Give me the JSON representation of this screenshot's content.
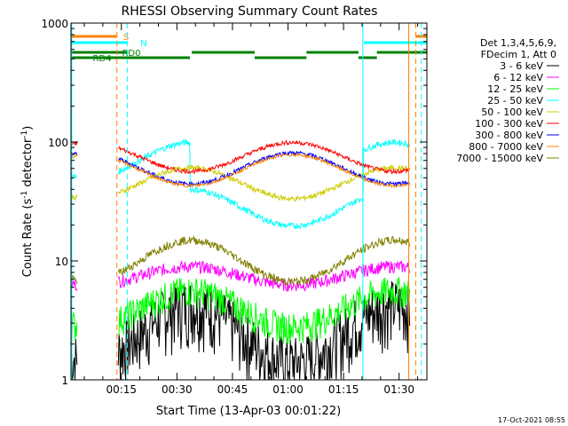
{
  "chart_data": {
    "type": "line",
    "title": "RHESSI Observing Summary Count Rates",
    "xlabel": "Start Time (13-Apr-03 00:01:22)",
    "ylabel_main": "Count Rate (s",
    "ylabel_sup1": "-1",
    "ylabel_mid": " detector",
    "ylabel_sup2": "-1",
    "ylabel_end": ")",
    "yscale": "log",
    "ylim": [
      1,
      1000
    ],
    "xlim_minutes": [
      1.4,
      97.5
    ],
    "x_ticks": [
      {
        "label": "00:15",
        "minutes": 15
      },
      {
        "label": "00:30",
        "minutes": 30
      },
      {
        "label": "00:45",
        "minutes": 45
      },
      {
        "label": "01:00",
        "minutes": 60
      },
      {
        "label": "01:15",
        "minutes": 75
      },
      {
        "label": "01:30",
        "minutes": 90
      }
    ],
    "y_ticks": [
      {
        "label": "1",
        "value": 1
      },
      {
        "label": "10",
        "value": 10
      },
      {
        "label": "100",
        "value": 100
      },
      {
        "label": "1000",
        "value": 1000
      }
    ],
    "legend_header": [
      "Det 1,3,4,5,6,9,",
      "FDecim 1, Att 0"
    ],
    "series": [
      {
        "name": "3 - 6 keV",
        "color": "#000000",
        "level": 2.5,
        "amp": 0.55,
        "noise": 0.6,
        "sats": "low"
      },
      {
        "name": "6 - 12 keV",
        "color": "#ff00ff",
        "level": 7.5,
        "amp": 0.18,
        "noise": 0.12,
        "sats": "mid"
      },
      {
        "name": "12 - 25 keV",
        "color": "#00ff00",
        "level": 4.0,
        "amp": 0.35,
        "noise": 0.3,
        "sats": "low"
      },
      {
        "name": "25 - 50 keV",
        "color": "#00ffff",
        "level": 28,
        "amp": 0.35,
        "noise": 0.06,
        "sats": "cyan"
      },
      {
        "name": "50 - 100 keV",
        "color": "#cccc00",
        "level": 45,
        "amp": 0.3,
        "noise": 0.05,
        "sats": "yellow"
      },
      {
        "name": "100 - 300 keV",
        "color": "#ff0000",
        "level": 75,
        "amp": 0.28,
        "noise": 0.04,
        "sats": "high"
      },
      {
        "name": "300 - 800 keV",
        "color": "#0000ff",
        "level": 60,
        "amp": 0.3,
        "noise": 0.04,
        "sats": "high"
      },
      {
        "name": "800 - 7000 keV",
        "color": "#ff8000",
        "level": 58,
        "amp": 0.3,
        "noise": 0.03,
        "sats": "high"
      },
      {
        "name": "7000 - 15000 keV",
        "color": "#808000",
        "level": 10,
        "amp": 0.4,
        "noise": 0.08,
        "sats": "olive"
      }
    ],
    "flag_bars": [
      {
        "label": "S",
        "color": "#ff8000",
        "segments": [
          [
            1.4,
            13.8
          ],
          [
            94.5,
            97.5
          ]
        ],
        "level": "S"
      },
      {
        "label": "N",
        "color": "#00ffff",
        "segments": [
          [
            1.4,
            16.5
          ],
          [
            80.5,
            97.5
          ]
        ],
        "level": "N"
      },
      {
        "label": "RD0",
        "color": "#008000",
        "segments": [
          [
            1.4,
            16.8
          ],
          [
            34,
            51
          ],
          [
            65,
            79
          ],
          [
            84,
            97.5
          ]
        ],
        "level": "RD0"
      },
      {
        "label": "RD4",
        "color": "#008000",
        "segments": [
          [
            1.4,
            33.5
          ],
          [
            51,
            65
          ],
          [
            79,
            84
          ]
        ],
        "level": "RD4"
      }
    ],
    "markers": [
      {
        "minutes": 13.8,
        "color": "#ff8000",
        "dashed": true
      },
      {
        "minutes": 16.6,
        "color": "#00ffff",
        "dashed": true
      },
      {
        "minutes": 94.5,
        "color": "#ff8000",
        "dashed": true
      },
      {
        "minutes": 96.0,
        "color": "#00ffff",
        "dashed": true
      },
      {
        "minutes": 1.6,
        "color": "#00ffff",
        "dashed": false
      },
      {
        "minutes": 80.2,
        "color": "#00ffff",
        "dashed": false
      },
      {
        "minutes": 92.6,
        "color": "#ff8000",
        "dashed": false
      }
    ],
    "gaps": [
      [
        3.2,
        14.0
      ],
      [
        93.0,
        97.5
      ]
    ]
  },
  "footer": {
    "timestamp": "17-Oct-2021 08:55"
  }
}
